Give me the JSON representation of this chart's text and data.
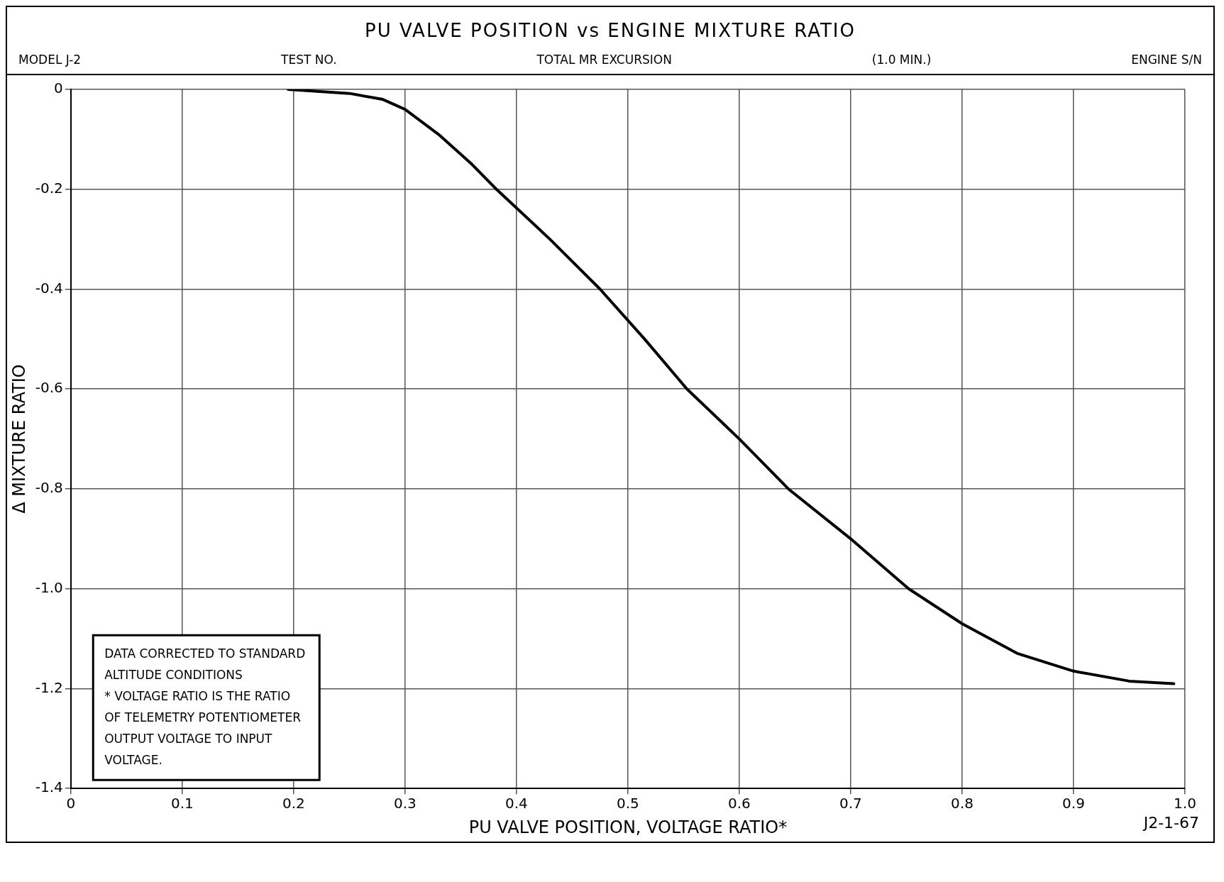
{
  "chart_data": {
    "type": "line",
    "title": "PU VALVE POSITION vs ENGINE MIXTURE RATIO",
    "xlabel": "PU VALVE POSITION, VOLTAGE RATIO*",
    "ylabel": "Δ MIXTURE RATIO",
    "annotations": [
      "MODEL J-2",
      "TEST NO.",
      "TOTAL MR EXCURSION",
      "(1.0 MIN.)",
      "ENGINE S/N",
      "DATA CORRECTED TO STANDARD\nALTITUDE CONDITIONS\n* VOLTAGE RATIO IS THE RATIO\nOF TELEMETRY POTENTIOMETER\nOUTPUT VOLTAGE TO INPUT\nVOLTAGE.",
      "J2-1-67"
    ],
    "xlim": [
      0,
      1
    ],
    "xticks": [
      0,
      0.1,
      0.2,
      0.3,
      0.4,
      0.5,
      0.6,
      0.7,
      0.8,
      0.9,
      {
        "value": 1,
        "label": "1.0"
      }
    ],
    "ylim": [
      -1.4,
      0
    ],
    "yticks": [
      0,
      -0.2,
      -0.4,
      -0.6,
      -0.8,
      {
        "value": -1,
        "label": "-1.0"
      },
      -1.2,
      -1.4
    ],
    "grid": true,
    "marker": "none",
    "line_style": "solid",
    "series": [
      {
        "color": "#000000",
        "x": [
          0.195,
          0.25,
          0.28,
          0.3,
          0.33,
          0.36,
          0.382,
          0.43,
          0.475,
          0.515,
          0.553,
          0.6,
          0.644,
          0.7,
          0.752,
          0.8,
          0.85,
          0.9,
          0.95,
          0.99
        ],
        "values": [
          0,
          -0.008,
          -0.02,
          -0.04,
          -0.09,
          -0.15,
          -0.2,
          -0.3,
          -0.4,
          -0.5,
          -0.6,
          -0.7,
          -0.8,
          -0.9,
          -1.0,
          -1.07,
          -1.13,
          -1.165,
          -1.185,
          -1.19
        ]
      }
    ]
  }
}
